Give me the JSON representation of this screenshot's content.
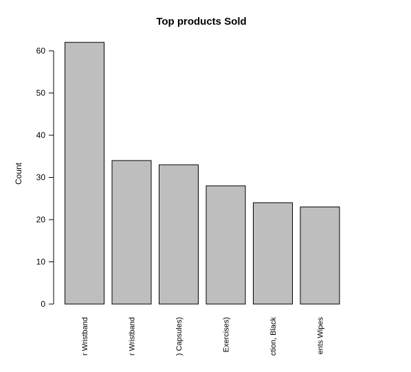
{
  "chart_data": {
    "type": "bar",
    "title": "Top products Sold",
    "xlabel": "",
    "ylabel": "Count",
    "categories": [
      "r Wristband",
      "r Wristband",
      ") Capsules)",
      "Exercises)",
      "ction, Black",
      "ents Wipes"
    ],
    "values": [
      62,
      34,
      33,
      28,
      24,
      23
    ],
    "ylim": [
      0,
      62
    ],
    "yticks": [
      0,
      10,
      20,
      30,
      40,
      50,
      60
    ],
    "grid": false,
    "colors": {
      "bar_fill": "#bebebe",
      "bar_stroke": "#000000",
      "axis": "#000000"
    }
  }
}
